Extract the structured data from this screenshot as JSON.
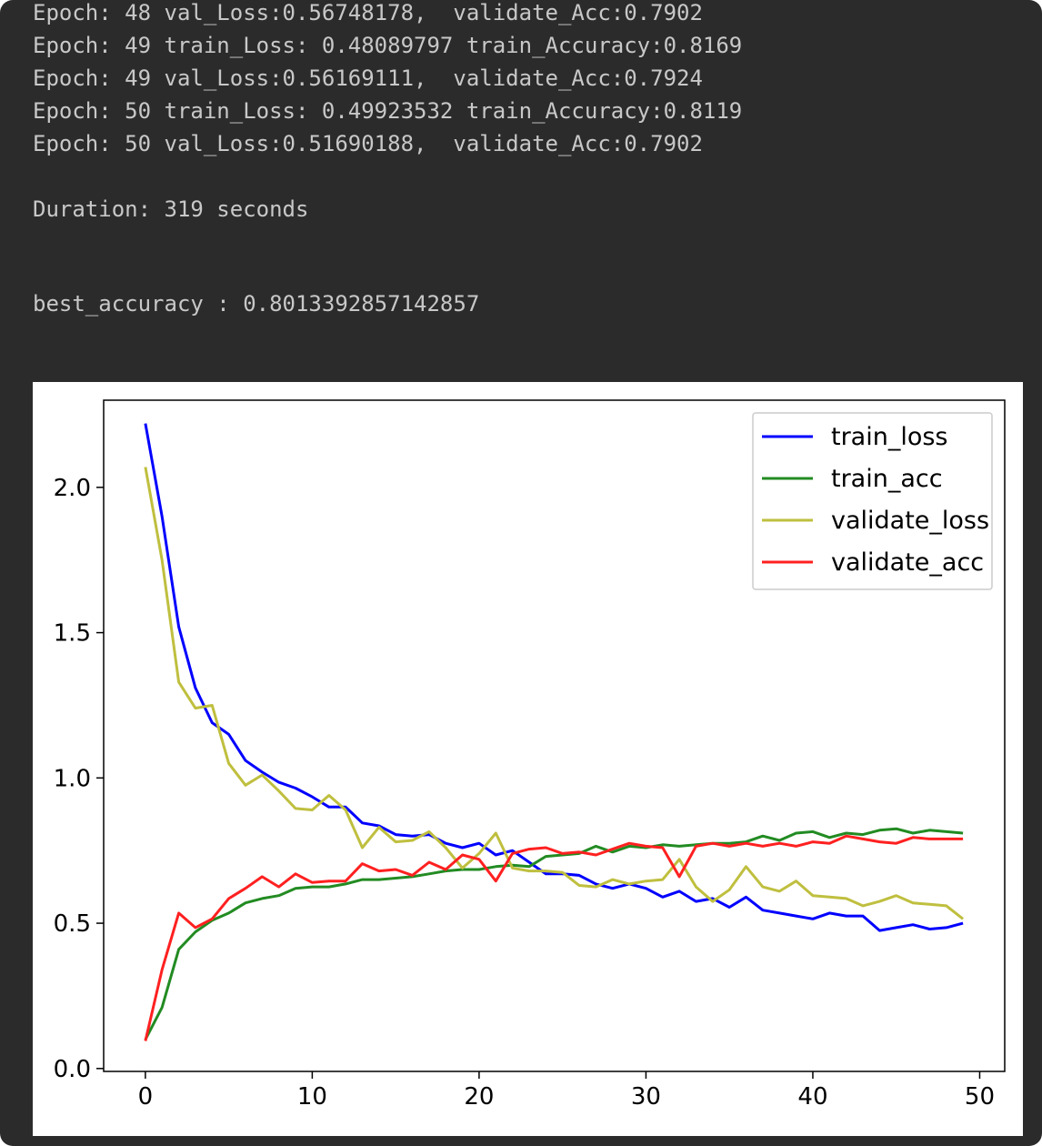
{
  "console": {
    "lines": [
      "Epoch: 48 val_Loss:0.56748178,  validate_Acc:0.7902",
      "Epoch: 49 train_Loss: 0.48089797 train_Accuracy:0.8169",
      "Epoch: 49 val_Loss:0.56169111,  validate_Acc:0.7924",
      "Epoch: 50 train_Loss: 0.49923532 train_Accuracy:0.8119",
      "Epoch: 50 val_Loss:0.51690188,  validate_Acc:0.7902"
    ],
    "duration": "Duration: 319 seconds",
    "best_accuracy": "best_accuracy : 0.8013392857142857"
  },
  "chart_data": {
    "type": "line",
    "title": "",
    "xlabel": "",
    "ylabel": "",
    "xlim": [
      -2.5,
      51.5
    ],
    "ylim": [
      -0.01,
      2.3
    ],
    "x_ticks": [
      0,
      10,
      20,
      30,
      40,
      50
    ],
    "y_ticks": [
      0.0,
      0.5,
      1.0,
      1.5,
      2.0
    ],
    "x_tick_labels": [
      "0",
      "10",
      "20",
      "30",
      "40",
      "50"
    ],
    "y_tick_labels": [
      "0.0",
      "0.5",
      "1.0",
      "1.5",
      "2.0"
    ],
    "grid": false,
    "legend_position": "top-right",
    "x": [
      0,
      1,
      2,
      3,
      4,
      5,
      6,
      7,
      8,
      9,
      10,
      11,
      12,
      13,
      14,
      15,
      16,
      17,
      18,
      19,
      20,
      21,
      22,
      23,
      24,
      25,
      26,
      27,
      28,
      29,
      30,
      31,
      32,
      33,
      34,
      35,
      36,
      37,
      38,
      39,
      40,
      41,
      42,
      43,
      44,
      45,
      46,
      47,
      48,
      49
    ],
    "series": [
      {
        "name": "train_loss",
        "color": "#0000ff",
        "values": [
          2.22,
          1.9,
          1.52,
          1.31,
          1.19,
          1.15,
          1.06,
          1.02,
          0.985,
          0.965,
          0.935,
          0.9,
          0.9,
          0.845,
          0.835,
          0.805,
          0.8,
          0.805,
          0.775,
          0.76,
          0.775,
          0.735,
          0.75,
          0.71,
          0.67,
          0.67,
          0.665,
          0.635,
          0.62,
          0.635,
          0.62,
          0.59,
          0.61,
          0.575,
          0.585,
          0.555,
          0.59,
          0.545,
          0.535,
          0.525,
          0.515,
          0.535,
          0.525,
          0.525,
          0.475,
          0.485,
          0.495,
          0.48,
          0.485,
          0.5
        ]
      },
      {
        "name": "train_acc",
        "color": "#228b22",
        "values": [
          0.1,
          0.21,
          0.41,
          0.47,
          0.51,
          0.535,
          0.57,
          0.585,
          0.595,
          0.62,
          0.625,
          0.625,
          0.635,
          0.65,
          0.65,
          0.655,
          0.66,
          0.67,
          0.68,
          0.685,
          0.685,
          0.695,
          0.7,
          0.695,
          0.73,
          0.735,
          0.74,
          0.765,
          0.745,
          0.765,
          0.76,
          0.77,
          0.765,
          0.77,
          0.775,
          0.775,
          0.78,
          0.8,
          0.785,
          0.81,
          0.815,
          0.795,
          0.81,
          0.805,
          0.82,
          0.825,
          0.81,
          0.82,
          0.815,
          0.81
        ]
      },
      {
        "name": "validate_loss",
        "color": "#bfbf3f",
        "values": [
          2.07,
          1.75,
          1.33,
          1.24,
          1.25,
          1.05,
          0.975,
          1.01,
          0.955,
          0.895,
          0.89,
          0.94,
          0.89,
          0.76,
          0.83,
          0.78,
          0.785,
          0.815,
          0.76,
          0.69,
          0.74,
          0.81,
          0.69,
          0.68,
          0.68,
          0.675,
          0.63,
          0.625,
          0.65,
          0.635,
          0.645,
          0.65,
          0.72,
          0.625,
          0.575,
          0.615,
          0.695,
          0.625,
          0.61,
          0.645,
          0.595,
          0.59,
          0.585,
          0.56,
          0.575,
          0.595,
          0.57,
          0.565,
          0.56,
          0.515
        ]
      },
      {
        "name": "validate_acc",
        "color": "#ff2020",
        "values": [
          0.095,
          0.34,
          0.535,
          0.485,
          0.515,
          0.585,
          0.62,
          0.66,
          0.625,
          0.67,
          0.64,
          0.645,
          0.645,
          0.705,
          0.68,
          0.685,
          0.665,
          0.71,
          0.685,
          0.735,
          0.72,
          0.645,
          0.74,
          0.755,
          0.76,
          0.74,
          0.745,
          0.735,
          0.755,
          0.775,
          0.765,
          0.76,
          0.66,
          0.765,
          0.775,
          0.765,
          0.775,
          0.765,
          0.775,
          0.765,
          0.78,
          0.775,
          0.8,
          0.79,
          0.78,
          0.775,
          0.795,
          0.79,
          0.79,
          0.79
        ]
      }
    ]
  }
}
